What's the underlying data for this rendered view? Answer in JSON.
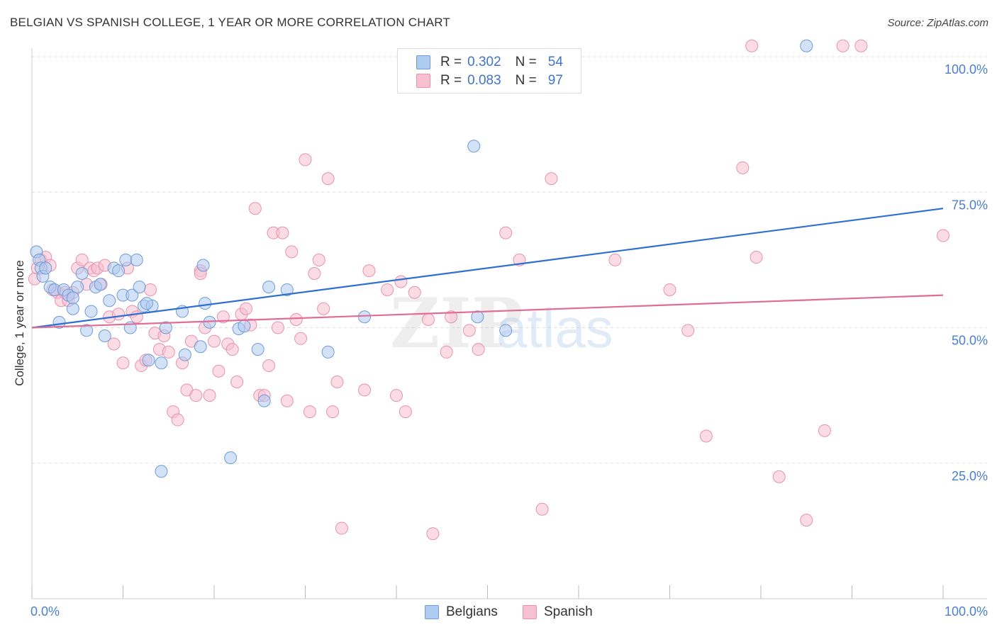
{
  "title": "BELGIAN VS SPANISH COLLEGE, 1 YEAR OR MORE CORRELATION CHART",
  "source": "Source: ZipAtlas.com",
  "colors": {
    "belgians_fill": "#aecbf0",
    "belgians_stroke": "#6f9bd8",
    "belgians_line": "#2f6fd0",
    "spanish_fill": "#f7bfd0",
    "spanish_stroke": "#e792ae",
    "spanish_line": "#e06d95",
    "tick_text": "#4a7fd0",
    "grid": "#dddddd"
  },
  "legend_top": {
    "rows": [
      {
        "r_label": "R =",
        "r_value": "0.302",
        "n_label": "N =",
        "n_value": "54"
      },
      {
        "r_label": "R =",
        "r_value": "0.083",
        "n_label": "N =",
        "n_value": "97"
      }
    ]
  },
  "legend_bottom": {
    "belgians": "Belgians",
    "spanish": "Spanish"
  },
  "watermark": {
    "zip": "ZIP",
    "atlas": "atlas"
  },
  "chart_data": {
    "type": "scatter",
    "title": "BELGIAN VS SPANISH COLLEGE, 1 YEAR OR MORE CORRELATION CHART",
    "xlabel": "",
    "ylabel": "College, 1 year or more",
    "xlim": [
      0,
      100
    ],
    "ylim": [
      0,
      105
    ],
    "x_tick_labels": {
      "left": "0.0%",
      "right": "100.0%"
    },
    "y_ticks": [
      {
        "value": 25,
        "label": "25.0%"
      },
      {
        "value": 50,
        "label": "50.0%"
      },
      {
        "value": 75,
        "label": "75.0%"
      },
      {
        "value": 100,
        "label": "100.0%"
      }
    ],
    "grid": true,
    "legend": "top-center",
    "series": [
      {
        "name": "Belgians",
        "r": 0.302,
        "n": 54,
        "trend": {
          "x": [
            0,
            100
          ],
          "y": [
            50.0,
            72.0
          ]
        },
        "points": [
          [
            0.5,
            64.0
          ],
          [
            0.8,
            62.5
          ],
          [
            1.0,
            61.0
          ],
          [
            1.2,
            59.5
          ],
          [
            1.5,
            61.0
          ],
          [
            2.0,
            57.5
          ],
          [
            2.5,
            57.0
          ],
          [
            3.0,
            51.0
          ],
          [
            3.5,
            57.0
          ],
          [
            4.0,
            56.0
          ],
          [
            4.5,
            53.5
          ],
          [
            5.0,
            57.5
          ],
          [
            5.5,
            60.0
          ],
          [
            6.0,
            49.5
          ],
          [
            6.5,
            53.0
          ],
          [
            7.0,
            57.5
          ],
          [
            7.5,
            58.0
          ],
          [
            8.0,
            48.5
          ],
          [
            8.5,
            55.0
          ],
          [
            9.0,
            61.0
          ],
          [
            9.5,
            60.5
          ],
          [
            10.0,
            56.0
          ],
          [
            10.3,
            62.5
          ],
          [
            10.8,
            50.0
          ],
          [
            11.0,
            56.0
          ],
          [
            11.5,
            62.5
          ],
          [
            11.8,
            57.5
          ],
          [
            12.3,
            54.0
          ],
          [
            12.8,
            44.0
          ],
          [
            13.2,
            54.0
          ],
          [
            14.2,
            43.5
          ],
          [
            14.7,
            50.0
          ],
          [
            16.5,
            53.0
          ],
          [
            16.8,
            45.0
          ],
          [
            18.5,
            46.5
          ],
          [
            18.8,
            61.5
          ],
          [
            19.0,
            54.5
          ],
          [
            19.5,
            51.0
          ],
          [
            22.7,
            49.8
          ],
          [
            23.3,
            50.3
          ],
          [
            24.8,
            46.0
          ],
          [
            25.5,
            36.5
          ],
          [
            26.0,
            57.5
          ],
          [
            28.0,
            57.0
          ],
          [
            32.5,
            45.5
          ],
          [
            36.5,
            52.0
          ],
          [
            14.2,
            23.5
          ],
          [
            21.8,
            26.0
          ],
          [
            48.5,
            83.5
          ],
          [
            48.9,
            52.0
          ],
          [
            52.0,
            49.5
          ],
          [
            85.0,
            102.0
          ],
          [
            4.5,
            55.5
          ],
          [
            12.6,
            54.5
          ]
        ]
      },
      {
        "name": "Spanish",
        "r": 0.083,
        "n": 97,
        "trend": {
          "x": [
            0,
            100
          ],
          "y": [
            50.0,
            56.0
          ]
        },
        "points": [
          [
            0.3,
            59.0
          ],
          [
            0.6,
            61.0
          ],
          [
            1.0,
            62.5
          ],
          [
            1.5,
            63.0
          ],
          [
            2.0,
            61.5
          ],
          [
            2.3,
            57.0
          ],
          [
            2.8,
            56.5
          ],
          [
            3.2,
            55.0
          ],
          [
            3.6,
            56.5
          ],
          [
            4.0,
            55.0
          ],
          [
            4.5,
            56.5
          ],
          [
            5.0,
            61.0
          ],
          [
            5.5,
            62.5
          ],
          [
            6.0,
            58.0
          ],
          [
            6.4,
            61.0
          ],
          [
            6.8,
            60.5
          ],
          [
            7.2,
            61.0
          ],
          [
            7.6,
            58.0
          ],
          [
            8.0,
            61.5
          ],
          [
            8.5,
            52.0
          ],
          [
            9.0,
            47.0
          ],
          [
            9.5,
            52.5
          ],
          [
            10.0,
            43.5
          ],
          [
            10.5,
            61.0
          ],
          [
            11.0,
            53.0
          ],
          [
            11.5,
            52.0
          ],
          [
            12.0,
            43.0
          ],
          [
            12.5,
            44.0
          ],
          [
            13.0,
            57.0
          ],
          [
            13.5,
            49.0
          ],
          [
            14.0,
            46.0
          ],
          [
            14.5,
            48.5
          ],
          [
            15.0,
            45.5
          ],
          [
            15.5,
            34.5
          ],
          [
            16.0,
            33.0
          ],
          [
            16.5,
            43.5
          ],
          [
            17.0,
            38.5
          ],
          [
            17.5,
            47.5
          ],
          [
            18.0,
            37.5
          ],
          [
            18.5,
            60.5
          ],
          [
            19.0,
            50.0
          ],
          [
            19.5,
            37.5
          ],
          [
            20.0,
            47.5
          ],
          [
            20.5,
            42.0
          ],
          [
            21.0,
            52.0
          ],
          [
            21.5,
            47.0
          ],
          [
            22.0,
            46.0
          ],
          [
            22.5,
            40.0
          ],
          [
            23.0,
            52.5
          ],
          [
            23.5,
            53.5
          ],
          [
            24.0,
            50.5
          ],
          [
            24.5,
            72.0
          ],
          [
            25.0,
            37.5
          ],
          [
            25.5,
            37.5
          ],
          [
            26.0,
            43.0
          ],
          [
            26.5,
            67.5
          ],
          [
            27.0,
            50.0
          ],
          [
            27.5,
            67.5
          ],
          [
            28.0,
            36.5
          ],
          [
            28.5,
            64.0
          ],
          [
            29.0,
            51.5
          ],
          [
            29.5,
            48.0
          ],
          [
            30.0,
            81.0
          ],
          [
            30.5,
            34.5
          ],
          [
            31.0,
            60.0
          ],
          [
            31.5,
            62.5
          ],
          [
            32.0,
            53.5
          ],
          [
            32.5,
            77.5
          ],
          [
            33.0,
            34.5
          ],
          [
            33.5,
            40.0
          ],
          [
            34.0,
            13.0
          ],
          [
            36.5,
            38.5
          ],
          [
            37.0,
            60.5
          ],
          [
            39.0,
            57.0
          ],
          [
            40.0,
            37.5
          ],
          [
            40.5,
            58.5
          ],
          [
            41.0,
            34.5
          ],
          [
            42.0,
            56.5
          ],
          [
            43.5,
            51.5
          ],
          [
            44.0,
            12.0
          ],
          [
            45.5,
            45.5
          ],
          [
            46.0,
            52.0
          ],
          [
            48.0,
            49.5
          ],
          [
            49.0,
            46.0
          ],
          [
            52.0,
            67.5
          ],
          [
            53.5,
            62.5
          ],
          [
            56.0,
            16.5
          ],
          [
            57.0,
            77.5
          ],
          [
            64.0,
            62.5
          ],
          [
            70.0,
            57.0
          ],
          [
            72.0,
            49.5
          ],
          [
            74.0,
            30.0
          ],
          [
            78.0,
            79.5
          ],
          [
            79.5,
            63.0
          ],
          [
            82.0,
            22.5
          ],
          [
            85.0,
            14.5
          ],
          [
            87.0,
            31.0
          ]
        ]
      },
      {
        "name": "Spanish (top edge)",
        "points": [
          [
            79.0,
            102.0
          ],
          [
            89.0,
            102.0
          ],
          [
            91.0,
            102.0
          ],
          [
            100.0,
            67.0
          ],
          [
            18.5,
            60.0
          ]
        ]
      }
    ]
  }
}
